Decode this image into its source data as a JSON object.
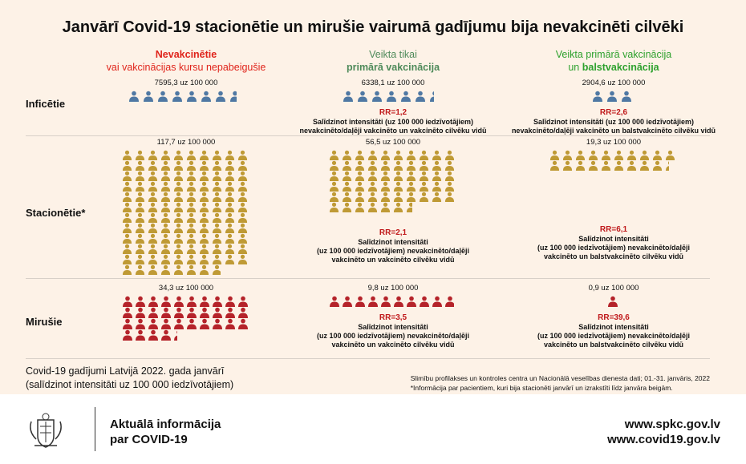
{
  "title": "Janvārī Covid-19 stacionētie un mirušie vairumā gadījumu bija nevakcinēti cilvēki",
  "columns": [
    {
      "line1": "Nevakcinētie",
      "line2": "vai vakcinācijas kursu nepabeigušie",
      "color": "#e0241b"
    },
    {
      "line1": "Veikta tikai",
      "line2": "primārā vakcinācija",
      "color": "#4e8a5a"
    },
    {
      "line1": "Veikta primārā vakcinācija",
      "line2a": "un ",
      "line2b": "balstvakcinācija",
      "color": "#2ea12e"
    }
  ],
  "colors": {
    "infected": "#4f78a3",
    "hospitalized": "#bf9a35",
    "deceased": "#b5232a",
    "rr": "#c0191b",
    "background": "#fdf2e7"
  },
  "rows": [
    {
      "label": "Inficētie",
      "icon": "person-icon",
      "icon_unit": 1000,
      "cells": [
        {
          "rate": "7595,3 uz 100 000",
          "value": 7595.3
        },
        {
          "rate": "6338,1 uz 100 000",
          "value": 6338.1,
          "rr": "RR=1,2",
          "cmp1": "Salīdzinot intensitāti (uz 100 000 iedzīvotājiem)",
          "cmp2": "nevakcinēto/daļēji vakcinēto un vakcinēto cilvēku vidū"
        },
        {
          "rate": "2904,6 uz 100 000",
          "value": 2904.6,
          "rr": "RR=2,6",
          "cmp1": "Salīdzinot intensitāti (uz 100 000 iedzīvotājiem)",
          "cmp2": "nevakcinēto/daļēji vakcinēto un balstvakcinēto cilvēku vidū"
        }
      ]
    },
    {
      "label": "Stacionētie*",
      "icon": "person-icon",
      "icon_unit": 1,
      "cells": [
        {
          "rate": "117,7 uz 100 000",
          "value": 117.7
        },
        {
          "rate": "56,5 uz 100 000",
          "value": 56.5,
          "rr": "RR=2,1",
          "cmp1": "Salīdzinot intensitāti",
          "cmp2": "(uz 100 000 iedzīvotājiem) nevakcinēto/daļēji",
          "cmp3": "vakcinēto un vakcinēto cilvēku vidū"
        },
        {
          "rate": "19,3 uz 100 000",
          "value": 19.3,
          "rr": "RR=6,1",
          "cmp1": "Salīdzinot intensitāti",
          "cmp2": "(uz 100 000 iedzīvotājiem) nevakcinēto/daļēji",
          "cmp3": "vakcinēto un balstvakcinēto cilvēku vidū"
        }
      ]
    },
    {
      "label": "Mirušie",
      "icon": "person-icon",
      "icon_unit": 1,
      "cells": [
        {
          "rate": "34,3 uz 100 000",
          "value": 34.3
        },
        {
          "rate": "9,8 uz 100 000",
          "value": 9.8,
          "rr": "RR=3,5",
          "cmp1": "Salīdzinot intensitāti",
          "cmp2": "(uz 100 000 iedzīvotājiem) nevakcinēto/daļēji",
          "cmp3": "vakcinēto un vakcinēto cilvēku vidū"
        },
        {
          "rate": "0,9 uz 100 000",
          "value": 0.9,
          "rr": "RR=39,6",
          "cmp1": "Salīdzinot intensitāti",
          "cmp2": "(uz 100 000 iedzīvotājiem) nevakcinēto/daļēji",
          "cmp3": "vakcinēto un balstvakcinēto cilvēku vidū"
        }
      ]
    }
  ],
  "footer": {
    "left1": "Covid-19 gadījumi Latvijā 2022. gada janvārī",
    "left2": "(salīdzinot intensitāti uz 100 000 iedzīvotājiem)",
    "source": "Slimību profilakses un kontroles centra un Nacionālā veselības dienesta dati; 01.-31. janvāris, 2022",
    "note": "*Informācija par pacientiem, kuri bija stacionēti janvārī un izrakstīti līdz janvāra beigām."
  },
  "bottom": {
    "info1": "Aktuālā informācija",
    "info2": "par COVID-19",
    "url1": "www.spkc.gov.lv",
    "url2": "www.covid19.gov.lv"
  }
}
